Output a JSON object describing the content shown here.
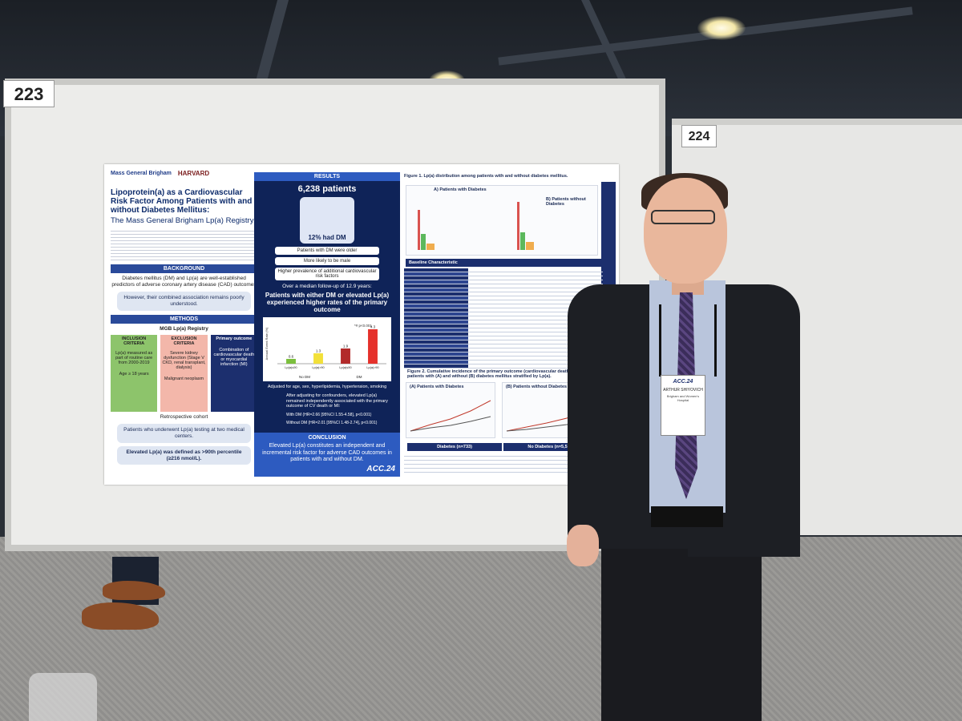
{
  "booths": {
    "left_number": "223",
    "right_number": "224"
  },
  "poster": {
    "logos": {
      "mgb": "Mass General Brigham",
      "harvard": "HARVARD",
      "harvard_sub": "MEDICAL SCHOOL"
    },
    "title": "Lipoprotein(a) as a Cardiovascular Risk Factor Among Patients with and without Diabetes Mellitus:",
    "subtitle": "The Mass General Brigham Lp(a) Registry",
    "background_header": "BACKGROUND",
    "background_text": "Diabetes mellitus (DM) and Lp(a) are well-established predictors of adverse coronary artery disease (CAD) outcomes",
    "background_pill": "However, their combined association remains poorly understood.",
    "methods_header": "METHODS",
    "registry": "MGB Lp(a) Registry",
    "primary_outcome": "Primary outcome",
    "inclusion": "INCLUSION CRITERIA",
    "exclusion": "EXCLUSION CRITERIA",
    "inclusion_text": "Lp(a) measured as part of routine care from 2000-2019",
    "age_text": "Age ≥ 18 years",
    "exclusion_text": "Severe kidney dysfunction (Stage V CKD, renal transplant, dialysis)",
    "malignant_text": "Malignant neoplasm",
    "outcome_text": "Combination of cardiovascular death or myocardial infarction (MI)",
    "cohort": "Retrospective cohort",
    "cohort_pill": "Patients who underwent Lp(a) testing at two medical centers.",
    "elevated_pill": "Elevated Lp(a) was defined as >90th percentile (≥216 nmol/L).",
    "results_header": "RESULTS",
    "patients": "6,238 patients",
    "had_dm": "12% had DM",
    "box1": "Patients with DM were older",
    "box2": "More likely to be male",
    "box3": "Higher prevalence of additional cardiovascular risk factors",
    "followup": "Over a median follow-up of 12.9 years:",
    "headline": "Patients with either DM or elevated Lp(a) experienced higher rates of the primary outcome",
    "adjusted": "Adjusted for age, sex, hyperlipidemia, hypertension, smoking",
    "after_adjust": "After adjusting for confounders, elevated Lp(a) remained independently associated with the primary outcome of CV death or MI:",
    "with_dm": "With DM (HR=2.66 [95%CI 1.55-4.58], p<0.001)",
    "without_dm": "Without DM (HR=2.01 [95%CI 1.48-2.74], p<0.001)",
    "conclusion_header": "CONCLUSION",
    "conclusion_text": "Elevated Lp(a) constitutes an independent and incremental risk factor for adverse CAD outcomes in patients with and without DM.",
    "acc_logo": "ACC.24",
    "figure1": "Figure 1. Lp(a) distribution among patients with and without diabetes mellitus.",
    "fig1_a": "A) Patients with Diabetes",
    "fig1_b": "B) Patients without Diabetes",
    "figure2": "Figure 2. Cumulative incidence of the primary outcome (cardiovascular death or MI) among patients with (A) and without (B) diabetes mellitus stratified by Lp(a).",
    "fig2_a": "(A) Patients with Diabetes",
    "fig2_b": "(B) Patients without Diabetes",
    "table_header": "Baseline Characteristic",
    "diabetes_col": "Diabetes (n=733)",
    "no_diabetes_col": "No Diabetes (n=5,505)"
  },
  "chart_data": {
    "type": "bar",
    "categories": [
      "Lp(a)≤90",
      "Lp(a)>90",
      "Lp(a)≤90",
      "Lp(a)>90"
    ],
    "groups": [
      "No DM",
      "DM"
    ],
    "values": [
      0.6,
      1.3,
      1.9,
      4.3
    ],
    "colors": [
      "#7bbf3d",
      "#f2e03a",
      "#b22a2a",
      "#e5312b"
    ],
    "ylabel": "Annual Event Rate (%)",
    "annotation": "*# p<0.001",
    "ylim": [
      0,
      5
    ]
  },
  "badge": {
    "logo": "ACC.24",
    "name": "ARTHUR SHIYOVICH",
    "org": "Brigham and Women's Hospital"
  }
}
